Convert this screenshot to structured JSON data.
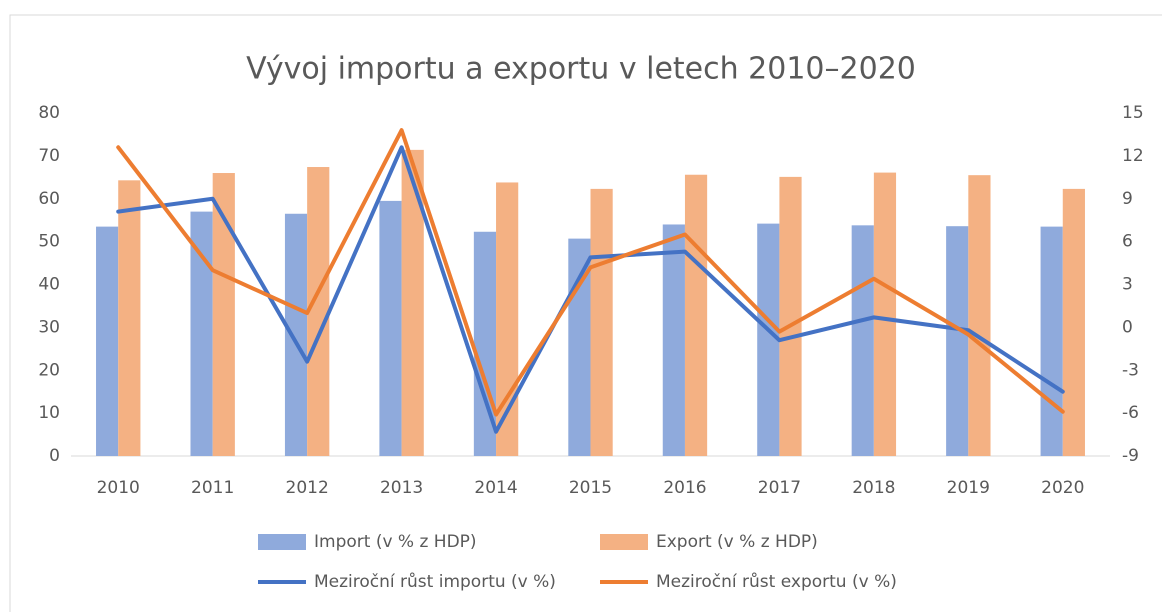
{
  "chart_data": {
    "type": "bar",
    "title": "Vývoj importu a exportu v letech 2010–2020",
    "categories": [
      "2010",
      "2011",
      "2012",
      "2013",
      "2014",
      "2015",
      "2016",
      "2017",
      "2018",
      "2019",
      "2020"
    ],
    "series": [
      {
        "name": "Import (v % z HDP)",
        "type": "bar",
        "color": "#8faadc",
        "values": [
          53.5,
          57,
          56.5,
          59.5,
          52.3,
          50.7,
          54,
          54.2,
          53.8,
          53.6,
          53.5
        ]
      },
      {
        "name": "Export (v % z HDP)",
        "type": "bar",
        "color": "#f4b183",
        "values": [
          64.3,
          66,
          67.4,
          71.4,
          63.8,
          62.3,
          65.6,
          65.1,
          66.1,
          65.5,
          62.3
        ]
      },
      {
        "name": "Meziroční růst importu (v %)",
        "type": "line",
        "axis": "y2",
        "color": "#4472c4",
        "values": [
          8.1,
          9.0,
          -2.4,
          12.6,
          -7.3,
          4.9,
          5.3,
          -0.9,
          0.7,
          -0.2,
          -4.5
        ]
      },
      {
        "name": "Meziroční růst exportu (v %)",
        "type": "line",
        "axis": "y2",
        "color": "#ed7d31",
        "values": [
          12.6,
          4.0,
          1.0,
          13.8,
          -6.1,
          4.2,
          6.5,
          -0.3,
          3.4,
          -0.5,
          -5.9
        ]
      }
    ],
    "ylim": [
      0,
      80
    ],
    "yticks": [
      0,
      10,
      20,
      30,
      40,
      50,
      60,
      70,
      80
    ],
    "y2lim": [
      -9,
      15
    ],
    "y2ticks": [
      -9,
      -6,
      -3,
      0,
      3,
      6,
      9,
      12,
      15
    ],
    "grid": false,
    "legend": "bottom"
  }
}
